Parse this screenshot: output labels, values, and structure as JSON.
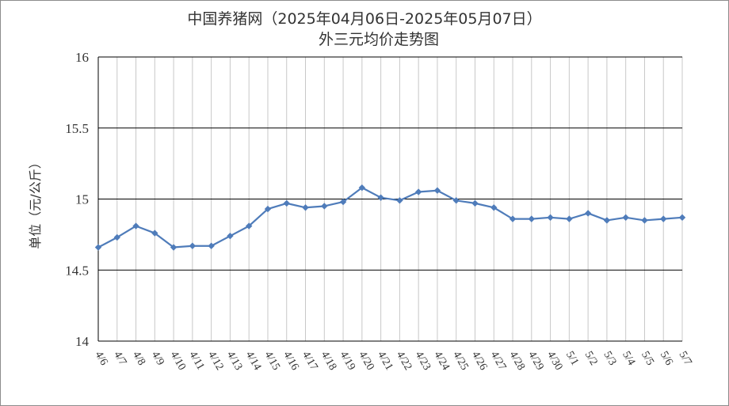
{
  "chart_data": {
    "type": "line",
    "title": "中国养猪网（2025年04月06日-2025年05月07日）",
    "subtitle": "外三元均价走势图",
    "ylabel": "单位（元/公斤）",
    "xlabel": "",
    "ylim": [
      14,
      16
    ],
    "yticks": [
      "14",
      "14.5",
      "15",
      "15.5",
      "16"
    ],
    "grid": true,
    "legend": "none",
    "categories": [
      "4/6",
      "4/7",
      "4/8",
      "4/9",
      "4/10",
      "4/11",
      "4/12",
      "4/13",
      "4/14",
      "4/15",
      "4/16",
      "4/17",
      "4/18",
      "4/19",
      "4/20",
      "4/21",
      "4/22",
      "4/23",
      "4/24",
      "4/25",
      "4/26",
      "4/27",
      "4/28",
      "4/29",
      "4/30",
      "5/1",
      "5/2",
      "5/3",
      "5/4",
      "5/5",
      "5/6",
      "5/7"
    ],
    "series": [
      {
        "values": [
          14.66,
          14.73,
          14.81,
          14.76,
          14.66,
          14.67,
          14.67,
          14.74,
          14.81,
          14.93,
          14.97,
          14.94,
          14.95,
          14.98,
          15.08,
          15.01,
          14.99,
          15.05,
          15.06,
          14.99,
          14.97,
          14.94,
          14.86,
          14.86,
          14.87,
          14.86,
          14.9,
          14.85,
          14.87,
          14.85,
          14.86,
          14.87
        ],
        "color": "#4f7cba"
      }
    ]
  }
}
